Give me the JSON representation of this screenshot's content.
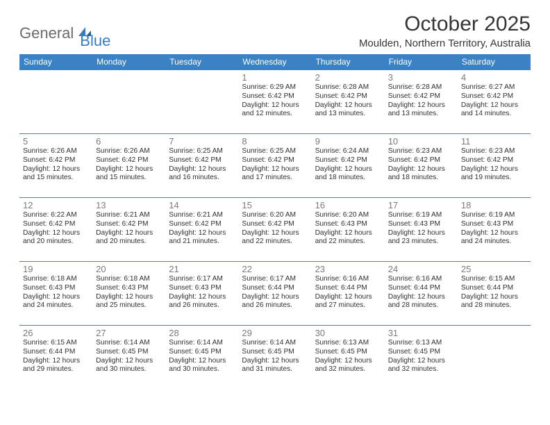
{
  "logo": {
    "text1": "General",
    "text2": "Blue"
  },
  "title": "October 2025",
  "location": "Moulden, Northern Territory, Australia",
  "colors": {
    "header_bg": "#3b82c4",
    "header_text": "#ffffff",
    "border": "#3b82c4",
    "daynum": "#7a7a7a",
    "body_text": "#303030",
    "logo_gray": "#6b6b6b",
    "logo_blue": "#3a7bbf",
    "background": "#ffffff"
  },
  "typography": {
    "title_fontsize": 30,
    "location_fontsize": 15,
    "dayhead_fontsize": 12,
    "daynum_fontsize": 13,
    "cell_fontsize": 10.2
  },
  "day_names": [
    "Sunday",
    "Monday",
    "Tuesday",
    "Wednesday",
    "Thursday",
    "Friday",
    "Saturday"
  ],
  "weeks": [
    [
      null,
      null,
      null,
      {
        "n": "1",
        "sunrise": "6:29 AM",
        "sunset": "6:42 PM",
        "dlh": "12",
        "dlm": "12"
      },
      {
        "n": "2",
        "sunrise": "6:28 AM",
        "sunset": "6:42 PM",
        "dlh": "12",
        "dlm": "13"
      },
      {
        "n": "3",
        "sunrise": "6:28 AM",
        "sunset": "6:42 PM",
        "dlh": "12",
        "dlm": "13"
      },
      {
        "n": "4",
        "sunrise": "6:27 AM",
        "sunset": "6:42 PM",
        "dlh": "12",
        "dlm": "14"
      }
    ],
    [
      {
        "n": "5",
        "sunrise": "6:26 AM",
        "sunset": "6:42 PM",
        "dlh": "12",
        "dlm": "15"
      },
      {
        "n": "6",
        "sunrise": "6:26 AM",
        "sunset": "6:42 PM",
        "dlh": "12",
        "dlm": "15"
      },
      {
        "n": "7",
        "sunrise": "6:25 AM",
        "sunset": "6:42 PM",
        "dlh": "12",
        "dlm": "16"
      },
      {
        "n": "8",
        "sunrise": "6:25 AM",
        "sunset": "6:42 PM",
        "dlh": "12",
        "dlm": "17"
      },
      {
        "n": "9",
        "sunrise": "6:24 AM",
        "sunset": "6:42 PM",
        "dlh": "12",
        "dlm": "18"
      },
      {
        "n": "10",
        "sunrise": "6:23 AM",
        "sunset": "6:42 PM",
        "dlh": "12",
        "dlm": "18"
      },
      {
        "n": "11",
        "sunrise": "6:23 AM",
        "sunset": "6:42 PM",
        "dlh": "12",
        "dlm": "19"
      }
    ],
    [
      {
        "n": "12",
        "sunrise": "6:22 AM",
        "sunset": "6:42 PM",
        "dlh": "12",
        "dlm": "20"
      },
      {
        "n": "13",
        "sunrise": "6:21 AM",
        "sunset": "6:42 PM",
        "dlh": "12",
        "dlm": "20"
      },
      {
        "n": "14",
        "sunrise": "6:21 AM",
        "sunset": "6:42 PM",
        "dlh": "12",
        "dlm": "21"
      },
      {
        "n": "15",
        "sunrise": "6:20 AM",
        "sunset": "6:42 PM",
        "dlh": "12",
        "dlm": "22"
      },
      {
        "n": "16",
        "sunrise": "6:20 AM",
        "sunset": "6:43 PM",
        "dlh": "12",
        "dlm": "22"
      },
      {
        "n": "17",
        "sunrise": "6:19 AM",
        "sunset": "6:43 PM",
        "dlh": "12",
        "dlm": "23"
      },
      {
        "n": "18",
        "sunrise": "6:19 AM",
        "sunset": "6:43 PM",
        "dlh": "12",
        "dlm": "24"
      }
    ],
    [
      {
        "n": "19",
        "sunrise": "6:18 AM",
        "sunset": "6:43 PM",
        "dlh": "12",
        "dlm": "24"
      },
      {
        "n": "20",
        "sunrise": "6:18 AM",
        "sunset": "6:43 PM",
        "dlh": "12",
        "dlm": "25"
      },
      {
        "n": "21",
        "sunrise": "6:17 AM",
        "sunset": "6:43 PM",
        "dlh": "12",
        "dlm": "26"
      },
      {
        "n": "22",
        "sunrise": "6:17 AM",
        "sunset": "6:44 PM",
        "dlh": "12",
        "dlm": "26"
      },
      {
        "n": "23",
        "sunrise": "6:16 AM",
        "sunset": "6:44 PM",
        "dlh": "12",
        "dlm": "27"
      },
      {
        "n": "24",
        "sunrise": "6:16 AM",
        "sunset": "6:44 PM",
        "dlh": "12",
        "dlm": "28"
      },
      {
        "n": "25",
        "sunrise": "6:15 AM",
        "sunset": "6:44 PM",
        "dlh": "12",
        "dlm": "28"
      }
    ],
    [
      {
        "n": "26",
        "sunrise": "6:15 AM",
        "sunset": "6:44 PM",
        "dlh": "12",
        "dlm": "29"
      },
      {
        "n": "27",
        "sunrise": "6:14 AM",
        "sunset": "6:45 PM",
        "dlh": "12",
        "dlm": "30"
      },
      {
        "n": "28",
        "sunrise": "6:14 AM",
        "sunset": "6:45 PM",
        "dlh": "12",
        "dlm": "30"
      },
      {
        "n": "29",
        "sunrise": "6:14 AM",
        "sunset": "6:45 PM",
        "dlh": "12",
        "dlm": "31"
      },
      {
        "n": "30",
        "sunrise": "6:13 AM",
        "sunset": "6:45 PM",
        "dlh": "12",
        "dlm": "32"
      },
      {
        "n": "31",
        "sunrise": "6:13 AM",
        "sunset": "6:45 PM",
        "dlh": "12",
        "dlm": "32"
      },
      null
    ]
  ],
  "labels": {
    "sunrise": "Sunrise:",
    "sunset": "Sunset:",
    "daylight_prefix": "Daylight:",
    "hours_word": "hours",
    "and_word": "and",
    "minutes_word": "minutes."
  }
}
